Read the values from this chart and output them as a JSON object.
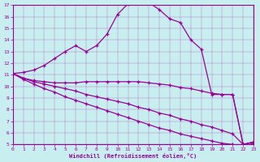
{
  "xlabel": "Windchill (Refroidissement éolien,°C)",
  "bg_color": "#c8eef0",
  "line_color": "#990099",
  "xlim": [
    0,
    23
  ],
  "ylim": [
    5,
    17
  ],
  "xticks": [
    0,
    1,
    2,
    3,
    4,
    5,
    6,
    7,
    8,
    9,
    10,
    11,
    12,
    13,
    14,
    15,
    16,
    17,
    18,
    19,
    20,
    21,
    22,
    23
  ],
  "yticks": [
    5,
    6,
    7,
    8,
    9,
    10,
    11,
    12,
    13,
    14,
    15,
    16,
    17
  ],
  "curve_peak_x": [
    0,
    1,
    2,
    3,
    4,
    5,
    6,
    7,
    8,
    9,
    10,
    11,
    12,
    13,
    14,
    15,
    16,
    17,
    18,
    19,
    20,
    21,
    22,
    23
  ],
  "curve_peak_y": [
    11.1,
    11.2,
    11.4,
    11.8,
    12.4,
    13.0,
    13.5,
    13.0,
    13.5,
    14.5,
    16.2,
    17.1,
    17.2,
    17.2,
    16.6,
    15.8,
    15.5,
    14.0,
    13.2,
    9.3,
    9.3,
    9.3,
    5.0,
    5.2
  ],
  "curve_mid_x": [
    0,
    1,
    2,
    3,
    4,
    5,
    6,
    7,
    8,
    9,
    10,
    11,
    12,
    13,
    14,
    15,
    16,
    17,
    18,
    19,
    20,
    21,
    22,
    23
  ],
  "curve_mid_y": [
    11.1,
    10.7,
    10.5,
    10.4,
    10.3,
    10.3,
    10.3,
    10.4,
    10.4,
    10.4,
    10.4,
    10.4,
    10.4,
    10.3,
    10.2,
    10.1,
    9.9,
    9.8,
    9.6,
    9.4,
    9.3,
    9.3,
    5.0,
    5.2
  ],
  "curve_low1_x": [
    0,
    1,
    2,
    3,
    4,
    5,
    6,
    7,
    8,
    9,
    10,
    11,
    12,
    13,
    14,
    15,
    16,
    17,
    18,
    19,
    20,
    21,
    22,
    23
  ],
  "curve_low1_y": [
    11.1,
    10.7,
    10.4,
    10.2,
    10.0,
    9.8,
    9.6,
    9.3,
    9.1,
    8.9,
    8.7,
    8.5,
    8.2,
    8.0,
    7.7,
    7.5,
    7.2,
    7.0,
    6.7,
    6.5,
    6.2,
    5.9,
    5.0,
    5.2
  ],
  "curve_low2_x": [
    0,
    1,
    2,
    3,
    4,
    5,
    6,
    7,
    8,
    9,
    10,
    11,
    12,
    13,
    14,
    15,
    16,
    17,
    18,
    19,
    20,
    21,
    22,
    23
  ],
  "curve_low2_y": [
    11.1,
    10.6,
    10.2,
    9.8,
    9.5,
    9.1,
    8.8,
    8.5,
    8.2,
    7.9,
    7.6,
    7.3,
    7.0,
    6.7,
    6.4,
    6.2,
    5.9,
    5.7,
    5.5,
    5.3,
    5.1,
    5.0,
    4.8,
    5.1
  ]
}
